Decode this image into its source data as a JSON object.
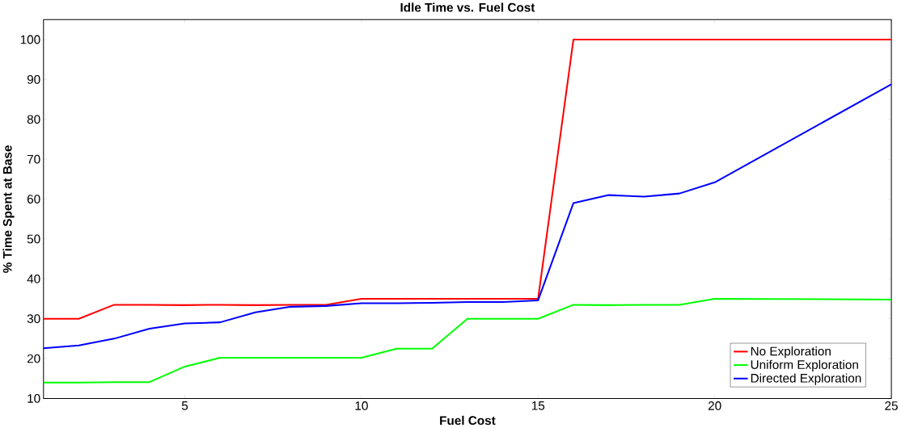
{
  "chart_data": {
    "type": "line",
    "title": "Idle Time vs. Fuel Cost",
    "xlabel": "Fuel Cost",
    "ylabel": "% Time Spent at Base",
    "x": [
      1,
      2,
      3,
      4,
      5,
      6,
      7,
      8,
      9,
      10,
      11,
      12,
      13,
      14,
      15,
      16,
      17,
      18,
      19,
      20,
      25
    ],
    "xlim": [
      1,
      25
    ],
    "xticks": [
      5,
      10,
      15,
      20,
      25
    ],
    "ylim": [
      10,
      105
    ],
    "yticks": [
      10,
      20,
      30,
      40,
      50,
      60,
      70,
      80,
      90,
      100
    ],
    "grid": false,
    "legend": "bottom right",
    "marker": "none",
    "line_style": "solid",
    "series": [
      {
        "name": "No Exploration",
        "color": "#ff0000",
        "values": [
          30,
          30,
          33.5,
          33.5,
          33.4,
          33.5,
          33.4,
          33.5,
          33.5,
          35,
          35,
          35,
          35,
          35,
          35,
          100,
          100,
          100,
          100,
          100,
          100
        ]
      },
      {
        "name": "Uniform Exploration",
        "color": "#00ff00",
        "values": [
          14,
          14,
          14.1,
          14.1,
          18,
          20.2,
          20.2,
          20.2,
          20.2,
          20.2,
          22.5,
          22.5,
          30,
          30,
          30,
          33.5,
          33.4,
          33.5,
          33.5,
          35,
          34.8
        ]
      },
      {
        "name": "Directed Exploration",
        "color": "#0000ff",
        "values": [
          22.6,
          23.3,
          25,
          27.5,
          28.8,
          29.1,
          31.6,
          33,
          33.2,
          33.9,
          33.9,
          34,
          34.2,
          34.2,
          34.6,
          59,
          61,
          60.6,
          61.4,
          64.2,
          88.8
        ]
      }
    ]
  }
}
